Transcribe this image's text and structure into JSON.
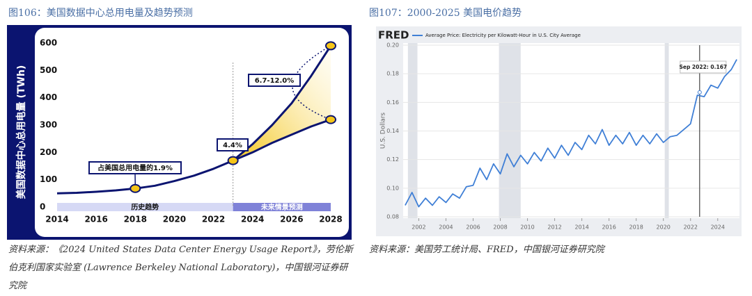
{
  "chart_data": [
    {
      "type": "line",
      "title": "图106：美国数据中心总用电量及趋势预测",
      "source": "资料来源：《2024 United States Data Center Energy Usage Report》，劳伦斯伯克利国家实验室 (Lawrence Berkeley National Laboratory)，中国银河证券研究院",
      "ylabel": "美国数据中心总用电量 (TWh)",
      "x": [
        2014,
        2015,
        2016,
        2017,
        2018,
        2019,
        2020,
        2021,
        2022,
        2023,
        2024,
        2025,
        2026,
        2027,
        2028
      ],
      "series": [
        {
          "color": "#0b1470",
          "values": [
            50,
            52,
            56,
            61,
            68,
            78,
            95,
            115,
            140,
            170,
            null,
            null,
            null,
            null,
            null
          ]
        },
        {
          "color": "#0b1470",
          "values": [
            null,
            null,
            null,
            null,
            null,
            null,
            null,
            null,
            null,
            170,
            230,
            300,
            380,
            480,
            590
          ]
        },
        {
          "color": "#0b1470",
          "values": [
            null,
            null,
            null,
            null,
            null,
            null,
            null,
            null,
            null,
            170,
            200,
            235,
            265,
            295,
            320
          ]
        }
      ],
      "xlim": [
        2014,
        2028
      ],
      "xticks": [
        2014,
        2016,
        2018,
        2020,
        2022,
        2024,
        2026,
        2028
      ],
      "ylim": [
        0,
        600
      ],
      "yticks": [
        0,
        100,
        200,
        300,
        400,
        500,
        600
      ],
      "annotations": [
        "占美国总用电量的1.9%",
        "4.4%",
        "6.7-12.0%"
      ],
      "bands": [
        "历史趋势",
        "未来情景预测"
      ]
    },
    {
      "type": "line",
      "title": "图107：2000-2025 美国电价趋势",
      "source": "资料来源：美国劳工统计局、FRED，中国银河证券研究院",
      "brand": "FRED",
      "ylabel": "U.S. Dollars",
      "x": [
        2001,
        2001.5,
        2002,
        2002.5,
        2003,
        2003.5,
        2004,
        2004.5,
        2005,
        2005.5,
        2006,
        2006.5,
        2007,
        2007.5,
        2008,
        2008.5,
        2009,
        2009.5,
        2010,
        2010.5,
        2011,
        2011.5,
        2012,
        2012.5,
        2013,
        2013.5,
        2014,
        2014.5,
        2015,
        2015.5,
        2016,
        2016.5,
        2017,
        2017.5,
        2018,
        2018.5,
        2019,
        2019.5,
        2020,
        2020.5,
        2021,
        2021.5,
        2022,
        2022.5,
        2023,
        2023.5,
        2024,
        2024.5,
        2025,
        2025.4
      ],
      "series": [
        {
          "name": "Average Price: Electricity per Kilowatt-Hour in U.S. City Average",
          "color": "#3f7fd6",
          "values": [
            0.088,
            0.097,
            0.087,
            0.093,
            0.088,
            0.094,
            0.09,
            0.096,
            0.093,
            0.101,
            0.102,
            0.114,
            0.106,
            0.117,
            0.11,
            0.124,
            0.115,
            0.123,
            0.117,
            0.125,
            0.119,
            0.128,
            0.121,
            0.13,
            0.123,
            0.132,
            0.127,
            0.137,
            0.131,
            0.141,
            0.13,
            0.137,
            0.131,
            0.139,
            0.13,
            0.137,
            0.131,
            0.138,
            0.132,
            0.136,
            0.137,
            0.141,
            0.145,
            0.165,
            0.164,
            0.172,
            0.17,
            0.178,
            0.183,
            0.19
          ]
        }
      ],
      "xlim": [
        2000.85,
        2025.6
      ],
      "xticks": [
        2002,
        2004,
        2006,
        2008,
        2010,
        2012,
        2014,
        2016,
        2018,
        2020,
        2022,
        2024
      ],
      "ylim": [
        0.08,
        0.2
      ],
      "yticks": [
        0.08,
        {
          "value": 0.1,
          "label": "0.10"
        },
        0.12,
        0.14,
        0.16,
        0.18,
        {
          "value": 0.2,
          "label": "0.20"
        }
      ],
      "recessions": [
        [
          2001.2,
          2001.9
        ],
        [
          2007.9,
          2009.5
        ],
        [
          2020.1,
          2020.4
        ]
      ],
      "marker": {
        "x": 2022.67,
        "value": 0.167,
        "label": "Sep 2022: 0.167"
      }
    }
  ]
}
